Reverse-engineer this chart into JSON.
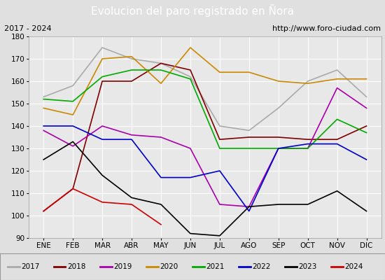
{
  "title": "Evolucion del paro registrado en Ñora",
  "subtitle_left": "2017 - 2024",
  "subtitle_right": "http://www.foro-ciudad.com",
  "x_labels": [
    "ENE",
    "FEB",
    "MAR",
    "ABR",
    "MAY",
    "JUN",
    "JUL",
    "AGO",
    "SEP",
    "OCT",
    "NOV",
    "DIC"
  ],
  "ylim": [
    90,
    180
  ],
  "yticks": [
    90,
    100,
    110,
    120,
    130,
    140,
    150,
    160,
    170,
    180
  ],
  "series": {
    "2017": {
      "color": "#aaaaaa",
      "linewidth": 1.2,
      "values": [
        153,
        158,
        175,
        170,
        168,
        162,
        140,
        138,
        148,
        160,
        165,
        153
      ]
    },
    "2018": {
      "color": "#800000",
      "linewidth": 1.2,
      "values": [
        102,
        112,
        160,
        160,
        168,
        165,
        134,
        135,
        135,
        134,
        134,
        140
      ]
    },
    "2019": {
      "color": "#aa00aa",
      "linewidth": 1.2,
      "values": [
        138,
        131,
        140,
        136,
        135,
        130,
        105,
        104,
        130,
        130,
        157,
        148
      ]
    },
    "2020": {
      "color": "#cc8800",
      "linewidth": 1.2,
      "values": [
        148,
        145,
        170,
        171,
        159,
        175,
        164,
        164,
        160,
        159,
        161,
        161
      ]
    },
    "2021": {
      "color": "#00aa00",
      "linewidth": 1.2,
      "values": [
        152,
        151,
        162,
        165,
        165,
        161,
        130,
        130,
        130,
        130,
        143,
        137
      ]
    },
    "2022": {
      "color": "#0000cc",
      "linewidth": 1.2,
      "values": [
        140,
        140,
        134,
        134,
        117,
        117,
        120,
        102,
        130,
        132,
        132,
        125
      ]
    },
    "2023": {
      "color": "#000000",
      "linewidth": 1.2,
      "values": [
        125,
        133,
        118,
        108,
        105,
        92,
        91,
        104,
        105,
        105,
        111,
        102
      ]
    },
    "2024": {
      "color": "#cc0000",
      "linewidth": 1.2,
      "values": [
        102,
        112,
        106,
        105,
        96,
        null,
        null,
        null,
        null,
        null,
        null,
        null
      ]
    }
  },
  "legend_order": [
    "2017",
    "2018",
    "2019",
    "2020",
    "2021",
    "2022",
    "2023",
    "2024"
  ],
  "title_bg_color": "#4472c4",
  "title_text_color": "#ffffff",
  "subtitle_bg_color": "#e0e0e0",
  "plot_bg_color": "#e8e8e8",
  "grid_color": "#ffffff",
  "title_fontsize": 11,
  "subtitle_fontsize": 8,
  "tick_fontsize": 7.5,
  "legend_fontsize": 7.5
}
